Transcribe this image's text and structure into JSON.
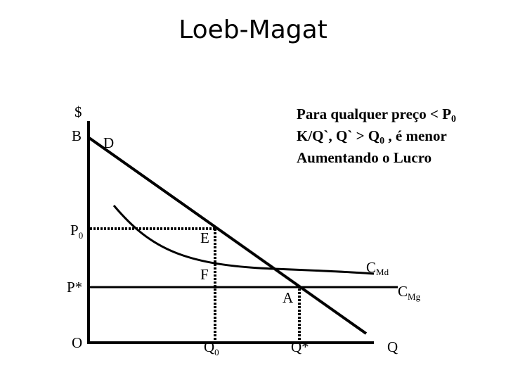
{
  "title": "Loeb-Magat",
  "note": {
    "line1_text": "Para qualquer preço < P",
    "line1_sub": "0",
    "line2_a": "K/Q`, Q` > Q",
    "line2_sub": "0",
    "line2_b": " , é menor",
    "line3": "Aumentando o Lucro"
  },
  "labels": {
    "dollar": "$",
    "b": "B",
    "d": "D",
    "p0_main": "P",
    "p0_sub": "0",
    "e": "E",
    "cmd_main": "C",
    "cmd_sub": "Md",
    "f": "F",
    "pstar": "P*",
    "a": "A",
    "cmg_main": "C",
    "cmg_sub": "Mg",
    "origin": "O",
    "q0_main": "Q",
    "q0_sub": "0",
    "qstar": "Q*",
    "q": "Q"
  }
}
